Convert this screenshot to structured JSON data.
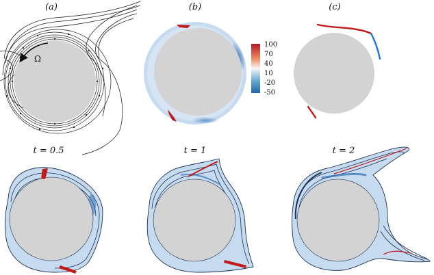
{
  "panels": {
    "a": {
      "label": "(a)",
      "symbol": "Ω"
    },
    "b": {
      "label": "(b)"
    },
    "c": {
      "label": "(c)"
    }
  },
  "colorbar": {
    "ticks": [
      "100",
      "70",
      "40",
      "10",
      "-20",
      "-50"
    ],
    "colors": {
      "high": "#b2182b",
      "mid": "#f7f7f7",
      "low": "#2166ac"
    }
  },
  "time_panels": [
    {
      "label": "t = 0.5"
    },
    {
      "label": "t = 1"
    },
    {
      "label": "t = 2"
    }
  ],
  "colors": {
    "cylinder": "#d3d3d3",
    "film": "#c6dbef",
    "positive": "#c01a1a",
    "negative": "#1f78d1",
    "contour": "#1b2f55"
  }
}
